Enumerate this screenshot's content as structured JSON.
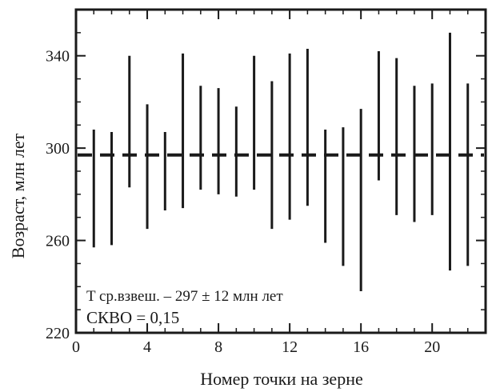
{
  "chart_data": {
    "type": "errorbar",
    "title": "",
    "xlabel": "Номер точки на зерне",
    "ylabel": "Возраст, млн лет",
    "xlim": [
      0,
      23
    ],
    "ylim": [
      220,
      360
    ],
    "xticks": [
      0,
      4,
      8,
      12,
      16,
      20
    ],
    "yticks": [
      220,
      260,
      300,
      340
    ],
    "grid": false,
    "reference_line": {
      "y": 297,
      "style": "dashed"
    },
    "series": [
      {
        "points": [
          {
            "x": 1,
            "low": 257,
            "high": 308
          },
          {
            "x": 2,
            "low": 258,
            "high": 307
          },
          {
            "x": 3,
            "low": 283,
            "high": 340
          },
          {
            "x": 4,
            "low": 265,
            "high": 319
          },
          {
            "x": 5,
            "low": 273,
            "high": 307
          },
          {
            "x": 6,
            "low": 274,
            "high": 341
          },
          {
            "x": 7,
            "low": 282,
            "high": 327
          },
          {
            "x": 8,
            "low": 280,
            "high": 326
          },
          {
            "x": 9,
            "low": 279,
            "high": 318
          },
          {
            "x": 10,
            "low": 282,
            "high": 340
          },
          {
            "x": 11,
            "low": 265,
            "high": 329
          },
          {
            "x": 12,
            "low": 269,
            "high": 341
          },
          {
            "x": 13,
            "low": 275,
            "high": 343
          },
          {
            "x": 14,
            "low": 259,
            "high": 308
          },
          {
            "x": 15,
            "low": 249,
            "high": 309
          },
          {
            "x": 16,
            "low": 238,
            "high": 317
          },
          {
            "x": 17,
            "low": 286,
            "high": 342
          },
          {
            "x": 18,
            "low": 271,
            "high": 339
          },
          {
            "x": 19,
            "low": 268,
            "high": 327
          },
          {
            "x": 20,
            "low": 271,
            "high": 328
          },
          {
            "x": 21,
            "low": 247,
            "high": 350
          },
          {
            "x": 22,
            "low": 249,
            "high": 328
          }
        ]
      }
    ],
    "annotations": [
      "T ср.взвеш. – 297 ± 12 млн лет",
      "СКВО = 0,15"
    ]
  }
}
